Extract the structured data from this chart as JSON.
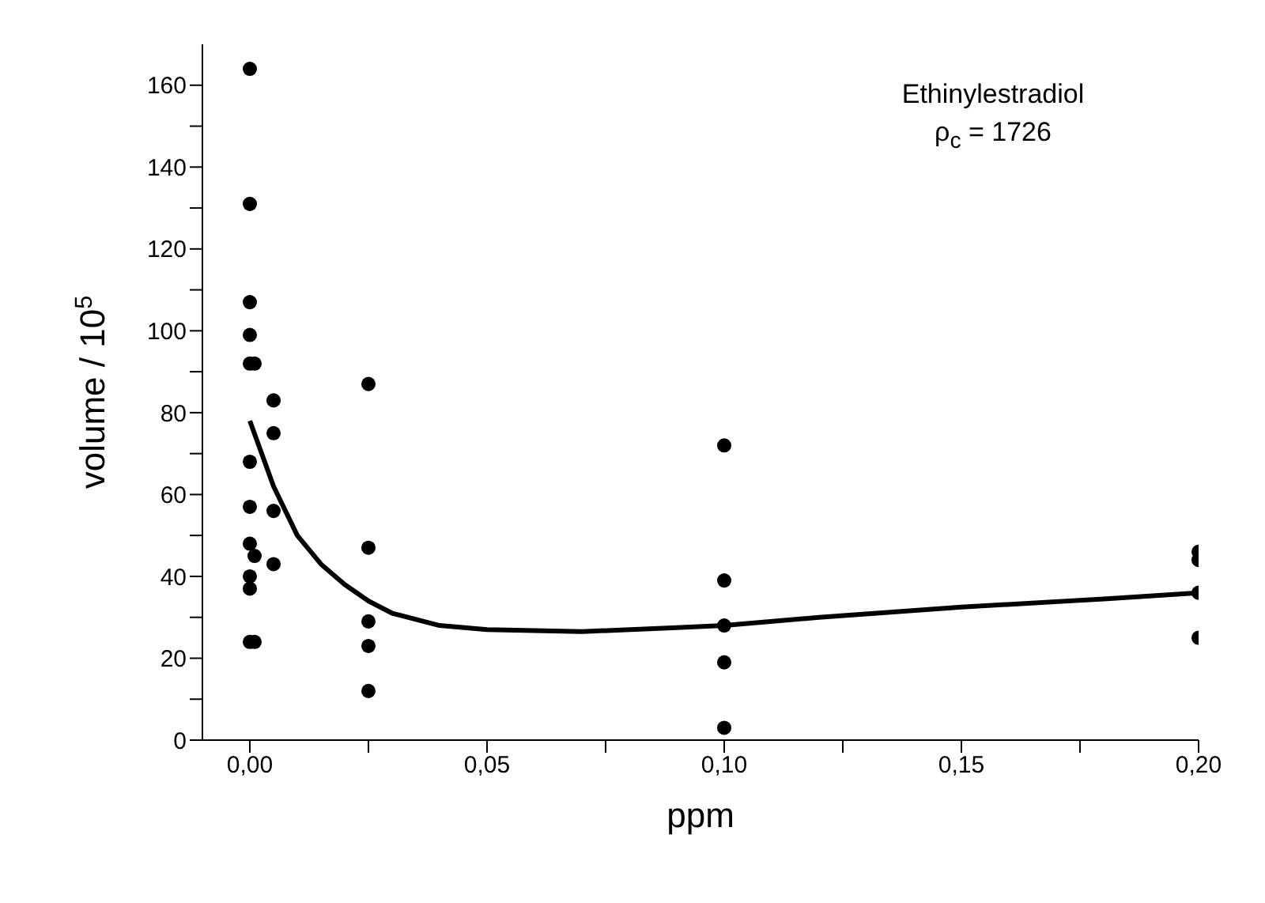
{
  "chart_data": {
    "type": "scatter",
    "xlabel": "ppm",
    "ylabel": "volume / 10$^{5}$",
    "annotations": [
      "Ethinylestradiol",
      "ρ$_{c}$ = 1726"
    ],
    "xlim": [
      -0.01,
      0.2
    ],
    "xticks": [
      {
        "value": 0,
        "label": "0,00"
      },
      {
        "value": 0.025,
        "label": null
      },
      {
        "value": 0.05,
        "label": "0,05"
      },
      {
        "value": 0.075,
        "label": null
      },
      {
        "value": 0.1,
        "label": "0,10"
      },
      {
        "value": 0.125,
        "label": null
      },
      {
        "value": 0.15,
        "label": "0,15"
      },
      {
        "value": 0.175,
        "label": null
      },
      {
        "value": 0.2,
        "label": "0,20"
      }
    ],
    "ylim": [
      0,
      170
    ],
    "yticks": [
      0,
      {
        "value": 10,
        "label": null
      },
      20,
      {
        "value": 30,
        "label": null
      },
      40,
      {
        "value": 50,
        "label": null
      },
      60,
      {
        "value": 70,
        "label": null
      },
      80,
      {
        "value": 90,
        "label": null
      },
      100,
      {
        "value": 110,
        "label": null
      },
      120,
      {
        "value": 130,
        "label": null
      },
      140,
      {
        "value": 150,
        "label": null
      },
      160
    ],
    "grid": false,
    "legend": false,
    "series": [
      {
        "color": "#000000",
        "marker": "circle",
        "x": [
          0,
          0,
          0,
          0,
          0,
          0.001,
          0,
          0,
          0,
          0.001,
          0,
          0,
          0,
          0.001,
          0.005,
          0.005,
          0.005,
          0.005,
          0.025,
          0.025,
          0.025,
          0.025,
          0.025,
          0.1,
          0.1,
          0.1,
          0.1,
          0.1,
          0.2,
          0.2,
          0.2,
          0.2
        ],
        "values": [
          164,
          131,
          107,
          99,
          92,
          92,
          68,
          57,
          48,
          45,
          40,
          37,
          24,
          24,
          83,
          75,
          56,
          43,
          87,
          47,
          29,
          23,
          12,
          72,
          39,
          28,
          19,
          3,
          46,
          44,
          36,
          25
        ]
      },
      {
        "type": "line",
        "color": "#000000",
        "marker": "none",
        "line_style": "solid",
        "x": [
          0,
          0.005,
          0.01,
          0.015,
          0.02,
          0.025,
          0.03,
          0.04,
          0.05,
          0.07,
          0.09,
          0.1,
          0.12,
          0.15,
          0.18,
          0.2
        ],
        "values": [
          78,
          62,
          50,
          43,
          38,
          34,
          31,
          28,
          27,
          26.5,
          27.5,
          28,
          30,
          32.5,
          34.5,
          36
        ]
      }
    ]
  }
}
